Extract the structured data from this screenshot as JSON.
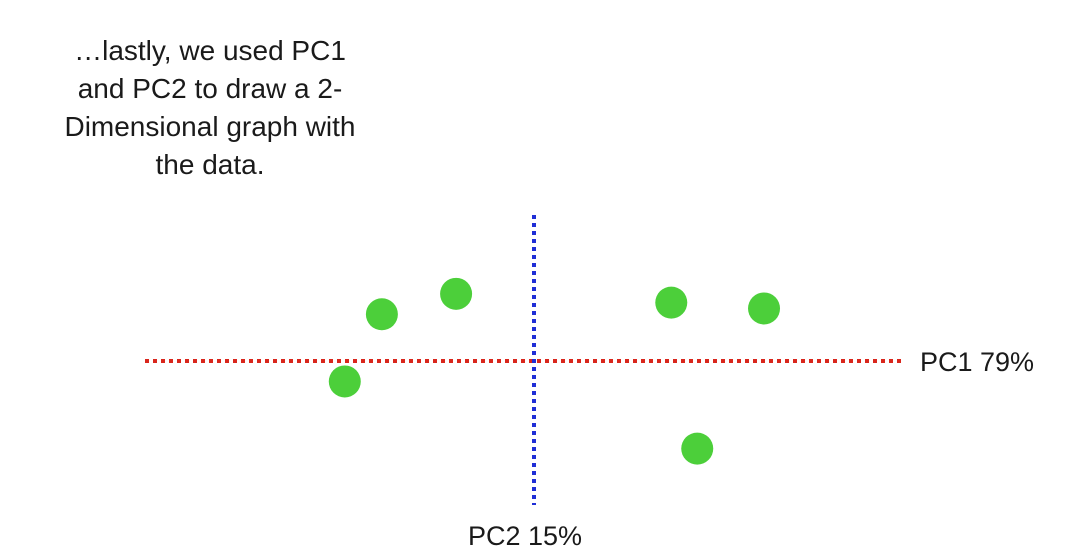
{
  "caption": {
    "lines": [
      "…lastly, we used PC1",
      "and PC2 to draw a 2-",
      "Dimensional graph with",
      "the data."
    ]
  },
  "chart_data": {
    "type": "scatter",
    "title": "",
    "xlabel": "PC1 79%",
    "ylabel": "PC2 15%",
    "xlim": [
      -10,
      10
    ],
    "ylim": [
      -5,
      5
    ],
    "grid": false,
    "legend": "none",
    "x": [
      -5.1,
      -4.1,
      -2.1,
      3.7,
      6.2,
      4.4
    ],
    "y": [
      -0.7,
      1.6,
      2.3,
      2.0,
      1.8,
      -3.0
    ],
    "colors": {
      "points": "#4ccf3a",
      "x_axis": "#d9261c",
      "y_axis": "#1f2ed6"
    }
  }
}
